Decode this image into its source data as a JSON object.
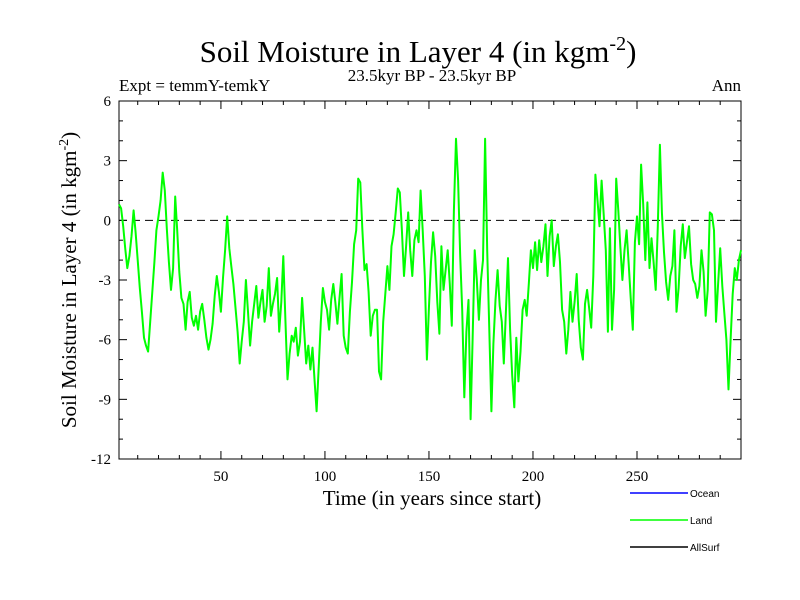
{
  "chart_data": {
    "type": "line",
    "title": "Soil Moisture in Layer 4 (in kgm",
    "title_sup": "-2",
    "title_close": ")",
    "subtitle_left": "Expt = temmY-temkY",
    "subtitle_center": "23.5kyr BP - 23.5kyr BP",
    "subtitle_right": "Ann",
    "xlabel": "Time (in years since start)",
    "ylabel": "Soil Moisture in Layer 4 (in kgm",
    "ylabel_sup": "-2",
    "ylabel_close": ")",
    "xlim": [
      1,
      300
    ],
    "ylim": [
      -12,
      6
    ],
    "xticks": [
      50,
      100,
      150,
      200,
      250
    ],
    "yticks": [
      6,
      3,
      0,
      -3,
      -6,
      -9,
      -12
    ],
    "zero_line": "dashed",
    "legend_position": "bottom-right",
    "legend": [
      {
        "name": "Ocean",
        "color": "#0000ff"
      },
      {
        "name": "Land",
        "color": "#00ff00"
      },
      {
        "name": "AllSurf",
        "color": "#000000"
      }
    ],
    "series": [
      {
        "name": "Land",
        "color": "#00ff00",
        "keypoints": [
          [
            1,
            0.8
          ],
          [
            2,
            0.6
          ],
          [
            3,
            -0.3
          ],
          [
            4,
            -1.4
          ],
          [
            5,
            -2.4
          ],
          [
            6,
            -1.8
          ],
          [
            7,
            -0.8
          ],
          [
            8,
            0.5
          ],
          [
            9,
            -0.6
          ],
          [
            10,
            -2.0
          ],
          [
            11,
            -3.4
          ],
          [
            12,
            -4.6
          ],
          [
            13,
            -5.9
          ],
          [
            14,
            -6.3
          ],
          [
            15,
            -6.6
          ],
          [
            16,
            -5.1
          ],
          [
            17,
            -3.6
          ],
          [
            18,
            -2.1
          ],
          [
            19,
            -0.5
          ],
          [
            20,
            0.2
          ],
          [
            21,
            1.0
          ],
          [
            22,
            2.4
          ],
          [
            23,
            1.5
          ],
          [
            24,
            -0.4
          ],
          [
            25,
            -2.1
          ],
          [
            26,
            -3.5
          ],
          [
            27,
            -2.4
          ],
          [
            28,
            1.2
          ],
          [
            29,
            -0.5
          ],
          [
            30,
            -2.6
          ],
          [
            31,
            -3.9
          ],
          [
            32,
            -4.2
          ],
          [
            33,
            -5.5
          ],
          [
            34,
            -4.1
          ],
          [
            35,
            -3.6
          ],
          [
            36,
            -4.9
          ],
          [
            37,
            -5.3
          ],
          [
            38,
            -4.8
          ],
          [
            39,
            -5.5
          ],
          [
            40,
            -4.6
          ],
          [
            41,
            -4.2
          ],
          [
            42,
            -5.0
          ],
          [
            43,
            -5.9
          ],
          [
            44,
            -6.5
          ],
          [
            45,
            -6.0
          ],
          [
            46,
            -5.2
          ],
          [
            47,
            -3.8
          ],
          [
            48,
            -2.8
          ],
          [
            49,
            -3.6
          ],
          [
            50,
            -4.6
          ],
          [
            51,
            -2.9
          ],
          [
            52,
            -1.5
          ],
          [
            53,
            0.2
          ],
          [
            54,
            -1.4
          ],
          [
            55,
            -2.3
          ],
          [
            56,
            -3.2
          ],
          [
            57,
            -4.4
          ],
          [
            58,
            -5.6
          ],
          [
            59,
            -7.2
          ],
          [
            60,
            -6.1
          ],
          [
            61,
            -5.1
          ],
          [
            62,
            -3.0
          ],
          [
            63,
            -4.6
          ],
          [
            64,
            -6.3
          ],
          [
            65,
            -5.1
          ],
          [
            66,
            -4.2
          ],
          [
            67,
            -3.3
          ],
          [
            68,
            -4.9
          ],
          [
            69,
            -4.1
          ],
          [
            70,
            -3.5
          ],
          [
            71,
            -5.1
          ],
          [
            72,
            -4.3
          ],
          [
            73,
            -2.4
          ],
          [
            74,
            -4.8
          ],
          [
            75,
            -4.2
          ],
          [
            76,
            -3.7
          ],
          [
            77,
            -2.9
          ],
          [
            78,
            -5.6
          ],
          [
            79,
            -4.1
          ],
          [
            80,
            -1.8
          ],
          [
            81,
            -5.0
          ],
          [
            82,
            -8.0
          ],
          [
            83,
            -6.7
          ],
          [
            84,
            -5.8
          ],
          [
            85,
            -6.1
          ],
          [
            86,
            -5.4
          ],
          [
            87,
            -6.8
          ],
          [
            88,
            -6.1
          ],
          [
            89,
            -3.9
          ],
          [
            90,
            -5.5
          ],
          [
            91,
            -7.2
          ],
          [
            92,
            -6.3
          ],
          [
            93,
            -7.5
          ],
          [
            94,
            -6.4
          ],
          [
            95,
            -8.0
          ],
          [
            96,
            -9.6
          ],
          [
            97,
            -7.4
          ],
          [
            98,
            -5.1
          ],
          [
            99,
            -3.4
          ],
          [
            100,
            -4.1
          ],
          [
            101,
            -4.5
          ],
          [
            102,
            -5.5
          ],
          [
            103,
            -4.0
          ],
          [
            104,
            -3.2
          ],
          [
            105,
            -4.1
          ],
          [
            106,
            -5.2
          ],
          [
            107,
            -3.9
          ],
          [
            108,
            -2.7
          ],
          [
            109,
            -5.8
          ],
          [
            110,
            -6.4
          ],
          [
            111,
            -6.7
          ],
          [
            112,
            -4.6
          ],
          [
            113,
            -3.1
          ],
          [
            114,
            -1.2
          ],
          [
            115,
            -0.5
          ],
          [
            116,
            2.1
          ],
          [
            117,
            1.9
          ],
          [
            118,
            -0.5
          ],
          [
            119,
            -2.5
          ],
          [
            120,
            -2.2
          ],
          [
            121,
            -3.6
          ],
          [
            122,
            -5.8
          ],
          [
            123,
            -4.8
          ],
          [
            124,
            -4.5
          ],
          [
            125,
            -4.5
          ],
          [
            126,
            -7.6
          ],
          [
            127,
            -8.0
          ],
          [
            128,
            -5.1
          ],
          [
            129,
            -3.7
          ],
          [
            130,
            -2.3
          ],
          [
            131,
            -3.5
          ],
          [
            132,
            -1.3
          ],
          [
            133,
            -0.7
          ],
          [
            134,
            0.4
          ],
          [
            135,
            1.6
          ],
          [
            136,
            1.4
          ],
          [
            137,
            -0.5
          ],
          [
            138,
            -2.8
          ],
          [
            139,
            -1.3
          ],
          [
            140,
            0.4
          ],
          [
            141,
            -1.5
          ],
          [
            142,
            -2.8
          ],
          [
            143,
            -1.0
          ],
          [
            144,
            -0.5
          ],
          [
            145,
            -1.1
          ],
          [
            146,
            1.5
          ],
          [
            147,
            -0.5
          ],
          [
            148,
            -2.8
          ],
          [
            149,
            -7.0
          ],
          [
            150,
            -4.3
          ],
          [
            151,
            -2.1
          ],
          [
            152,
            -0.6
          ],
          [
            153,
            -1.8
          ],
          [
            154,
            -4.1
          ],
          [
            155,
            -5.7
          ],
          [
            156,
            -1.3
          ],
          [
            157,
            -3.5
          ],
          [
            158,
            -2.5
          ],
          [
            159,
            -1.5
          ],
          [
            160,
            -3.2
          ],
          [
            161,
            -5.3
          ],
          [
            162,
            0.5
          ],
          [
            163,
            4.1
          ],
          [
            164,
            2.0
          ],
          [
            165,
            -1.8
          ],
          [
            166,
            -4.5
          ],
          [
            167,
            -8.9
          ],
          [
            168,
            -5.6
          ],
          [
            169,
            -4.0
          ],
          [
            170,
            -10.0
          ],
          [
            171,
            -6.0
          ],
          [
            172,
            -1.5
          ],
          [
            173,
            -3.0
          ],
          [
            174,
            -5.0
          ],
          [
            175,
            -3.0
          ],
          [
            176,
            -2.0
          ],
          [
            177,
            4.1
          ],
          [
            178,
            -1.5
          ],
          [
            179,
            -5.5
          ],
          [
            180,
            -9.6
          ],
          [
            181,
            -6.2
          ],
          [
            182,
            -4.0
          ],
          [
            183,
            -2.5
          ],
          [
            184,
            -4.3
          ],
          [
            185,
            -5.1
          ],
          [
            186,
            -7.2
          ],
          [
            187,
            -4.6
          ],
          [
            188,
            -1.9
          ],
          [
            189,
            -5.5
          ],
          [
            190,
            -7.8
          ],
          [
            191,
            -9.4
          ],
          [
            192,
            -5.9
          ],
          [
            193,
            -8.1
          ],
          [
            194,
            -6.6
          ],
          [
            195,
            -4.5
          ],
          [
            196,
            -4.0
          ],
          [
            197,
            -4.8
          ],
          [
            198,
            -3.2
          ],
          [
            199,
            -1.5
          ],
          [
            200,
            -2.4
          ],
          [
            201,
            -1.1
          ],
          [
            202,
            -2.5
          ],
          [
            203,
            -1.0
          ],
          [
            204,
            -2.1
          ],
          [
            205,
            -1.3
          ],
          [
            206,
            -0.2
          ],
          [
            207,
            -2.8
          ],
          [
            208,
            -0.8
          ],
          [
            209,
            0.0
          ],
          [
            210,
            -2.3
          ],
          [
            211,
            -1.3
          ],
          [
            212,
            -0.7
          ],
          [
            213,
            -2.1
          ],
          [
            214,
            -4.5
          ],
          [
            215,
            -5.1
          ],
          [
            216,
            -6.7
          ],
          [
            217,
            -5.5
          ],
          [
            218,
            -3.6
          ],
          [
            219,
            -5.1
          ],
          [
            220,
            -4.1
          ],
          [
            221,
            -2.7
          ],
          [
            222,
            -5.0
          ],
          [
            223,
            -6.4
          ],
          [
            224,
            -7.0
          ],
          [
            225,
            -4.2
          ],
          [
            226,
            -3.5
          ],
          [
            227,
            -4.4
          ],
          [
            228,
            -5.4
          ],
          [
            229,
            -2.8
          ],
          [
            230,
            2.3
          ],
          [
            231,
            1.0
          ],
          [
            232,
            -0.3
          ],
          [
            233,
            2.0
          ],
          [
            234,
            0.3
          ],
          [
            235,
            -1.5
          ],
          [
            236,
            -5.6
          ],
          [
            237,
            -0.4
          ],
          [
            238,
            -5.5
          ],
          [
            239,
            -3.5
          ],
          [
            240,
            2.1
          ],
          [
            241,
            0.5
          ],
          [
            242,
            -1.3
          ],
          [
            243,
            -3.0
          ],
          [
            244,
            -1.5
          ],
          [
            245,
            -0.5
          ],
          [
            246,
            -2.2
          ],
          [
            247,
            -3.9
          ],
          [
            248,
            -5.5
          ],
          [
            249,
            -1.1
          ],
          [
            250,
            0.2
          ],
          [
            251,
            -1.2
          ],
          [
            252,
            2.8
          ],
          [
            253,
            0.8
          ],
          [
            254,
            -2.0
          ],
          [
            255,
            0.9
          ],
          [
            256,
            -2.4
          ],
          [
            257,
            -0.9
          ],
          [
            258,
            -2.1
          ],
          [
            259,
            -3.5
          ],
          [
            260,
            -0.3
          ],
          [
            261,
            3.8
          ],
          [
            262,
            0.4
          ],
          [
            263,
            -1.6
          ],
          [
            264,
            -3.1
          ],
          [
            265,
            -4.0
          ],
          [
            266,
            -2.8
          ],
          [
            267,
            -2.3
          ],
          [
            268,
            -0.5
          ],
          [
            269,
            -4.6
          ],
          [
            270,
            -3.4
          ],
          [
            271,
            -1.3
          ],
          [
            272,
            -0.2
          ],
          [
            273,
            -1.9
          ],
          [
            274,
            -1.1
          ],
          [
            275,
            -0.3
          ],
          [
            276,
            -2.2
          ],
          [
            277,
            -3.0
          ],
          [
            278,
            -3.2
          ],
          [
            279,
            -3.9
          ],
          [
            280,
            -3.3
          ],
          [
            281,
            -1.5
          ],
          [
            282,
            -2.6
          ],
          [
            283,
            -4.8
          ],
          [
            284,
            -3.5
          ],
          [
            285,
            0.4
          ],
          [
            286,
            0.3
          ],
          [
            287,
            -0.5
          ],
          [
            288,
            -5.1
          ],
          [
            289,
            -3.2
          ],
          [
            290,
            -1.4
          ],
          [
            291,
            -3.3
          ],
          [
            292,
            -4.7
          ],
          [
            293,
            -6.0
          ],
          [
            294,
            -8.5
          ],
          [
            295,
            -6.0
          ],
          [
            296,
            -3.7
          ],
          [
            297,
            -2.4
          ],
          [
            298,
            -3.0
          ],
          [
            299,
            -2.0
          ],
          [
            300,
            -1.5
          ]
        ]
      }
    ]
  }
}
